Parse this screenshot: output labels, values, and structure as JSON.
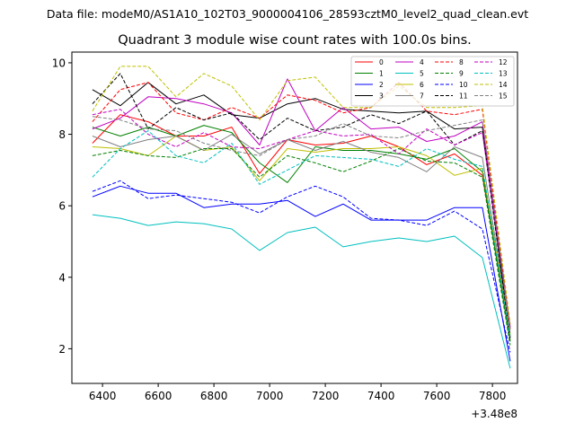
{
  "chart_data": {
    "type": "line",
    "suptitle": "Data file: modeM0/AS1A10_102T03_9000004106_28593cztM0_level2_quad_clean.evt",
    "title": "Quadrant 3 module wise count rates with 100.0s bins.",
    "xlabel": "",
    "ylabel": "",
    "offset_label": "+3.48e8",
    "x_offset": 348000000,
    "xlim": [
      6290,
      7890
    ],
    "ylim": [
      1.03,
      10.3
    ],
    "xticks": [
      6400,
      6600,
      6800,
      7000,
      7200,
      7400,
      7600,
      7800
    ],
    "yticks": [
      2,
      4,
      6,
      8,
      10
    ],
    "x": [
      6364,
      6464,
      6564,
      6664,
      6764,
      6864,
      6964,
      7064,
      7164,
      7264,
      7364,
      7464,
      7564,
      7664,
      7764,
      7864
    ],
    "series": [
      {
        "name": "0",
        "color": "#ff0000",
        "dash": "solid",
        "values": [
          7.75,
          8.55,
          8.35,
          7.95,
          7.95,
          8.2,
          6.9,
          7.85,
          7.7,
          7.75,
          7.95,
          7.65,
          7.15,
          7.45,
          6.85,
          2.35
        ]
      },
      {
        "name": "1",
        "color": "#008000",
        "dash": "solid",
        "values": [
          8.2,
          7.95,
          8.2,
          7.95,
          8.25,
          8.05,
          7.2,
          6.65,
          7.65,
          7.55,
          7.55,
          7.45,
          7.3,
          7.6,
          6.95,
          2.2
        ]
      },
      {
        "name": "2",
        "color": "#0000ff",
        "dash": "solid",
        "values": [
          6.25,
          6.55,
          6.35,
          6.35,
          5.95,
          6.05,
          6.05,
          6.15,
          5.7,
          6.05,
          5.6,
          5.6,
          5.6,
          5.95,
          5.95,
          1.65
        ]
      },
      {
        "name": "3",
        "color": "#000000",
        "dash": "solid",
        "values": [
          9.25,
          8.8,
          9.45,
          8.85,
          9.1,
          8.55,
          8.45,
          8.85,
          9.0,
          8.7,
          8.65,
          8.6,
          8.65,
          8.15,
          8.2,
          2.3
        ]
      },
      {
        "name": "4",
        "color": "#c000c0",
        "dash": "solid",
        "values": [
          8.15,
          8.45,
          9.05,
          9.0,
          8.85,
          8.6,
          7.7,
          9.55,
          8.1,
          8.75,
          8.15,
          8.2,
          7.8,
          7.95,
          8.35,
          2.6
        ]
      },
      {
        "name": "5",
        "color": "#00bfbf",
        "dash": "solid",
        "values": [
          5.75,
          5.65,
          5.45,
          5.55,
          5.5,
          5.35,
          4.75,
          5.25,
          5.4,
          4.85,
          5.0,
          5.1,
          5.0,
          5.15,
          4.55,
          1.45
        ]
      },
      {
        "name": "6",
        "color": "#bfbf00",
        "dash": "solid",
        "values": [
          7.65,
          7.6,
          7.4,
          7.95,
          7.55,
          7.65,
          6.7,
          7.6,
          7.5,
          7.6,
          7.6,
          7.65,
          7.4,
          6.85,
          7.05,
          2.4
        ]
      },
      {
        "name": "7",
        "color": "#808080",
        "dash": "solid",
        "values": [
          7.95,
          7.65,
          7.85,
          7.95,
          7.55,
          8.0,
          7.45,
          7.85,
          7.55,
          7.8,
          7.5,
          7.35,
          6.95,
          7.65,
          7.35,
          2.45
        ]
      },
      {
        "name": "8",
        "color": "#ff0000",
        "dash": "dashed",
        "values": [
          8.35,
          9.25,
          9.45,
          8.6,
          8.4,
          8.75,
          8.45,
          9.1,
          8.95,
          8.6,
          8.75,
          9.45,
          8.65,
          8.55,
          8.7,
          2.55
        ]
      },
      {
        "name": "9",
        "color": "#008000",
        "dash": "dashed",
        "values": [
          7.4,
          7.55,
          7.4,
          7.35,
          7.6,
          7.6,
          6.8,
          7.4,
          7.2,
          6.95,
          7.25,
          7.6,
          7.25,
          7.2,
          6.8,
          2.1
        ]
      },
      {
        "name": "10",
        "color": "#0000ff",
        "dash": "dashed",
        "values": [
          6.4,
          6.7,
          6.2,
          6.3,
          6.2,
          6.1,
          5.8,
          6.25,
          6.55,
          6.25,
          5.65,
          5.6,
          5.45,
          5.85,
          5.35,
          1.9
        ]
      },
      {
        "name": "11",
        "color": "#000000",
        "dash": "dashed",
        "values": [
          8.85,
          9.7,
          8.15,
          8.75,
          8.4,
          8.6,
          7.85,
          8.45,
          8.1,
          8.2,
          8.55,
          8.3,
          8.65,
          7.7,
          8.1,
          2.25
        ]
      },
      {
        "name": "12",
        "color": "#c000c0",
        "dash": "dashed",
        "values": [
          8.55,
          8.7,
          8.0,
          7.65,
          8.05,
          7.65,
          7.6,
          7.85,
          8.1,
          7.95,
          8.0,
          7.45,
          8.15,
          7.7,
          8.05,
          2.6
        ]
      },
      {
        "name": "13",
        "color": "#00bfbf",
        "dash": "dashed",
        "values": [
          6.8,
          7.6,
          8.1,
          7.4,
          7.2,
          7.75,
          6.6,
          7.0,
          7.4,
          7.35,
          7.3,
          7.1,
          7.6,
          7.3,
          7.1,
          2.3
        ]
      },
      {
        "name": "14",
        "color": "#bfbf00",
        "dash": "dashed",
        "values": [
          8.65,
          9.9,
          9.9,
          9.05,
          9.7,
          9.35,
          8.4,
          9.5,
          9.6,
          8.75,
          8.75,
          9.35,
          8.75,
          8.75,
          8.8,
          2.7
        ]
      },
      {
        "name": "15",
        "color": "#808080",
        "dash": "dashed",
        "values": [
          8.5,
          8.4,
          8.15,
          8.1,
          7.75,
          7.55,
          7.4,
          7.85,
          7.95,
          8.3,
          7.95,
          7.9,
          8.1,
          8.25,
          8.4,
          2.55
        ]
      }
    ],
    "legend": {
      "position": "top-right",
      "columns": 4
    },
    "grid": false
  }
}
